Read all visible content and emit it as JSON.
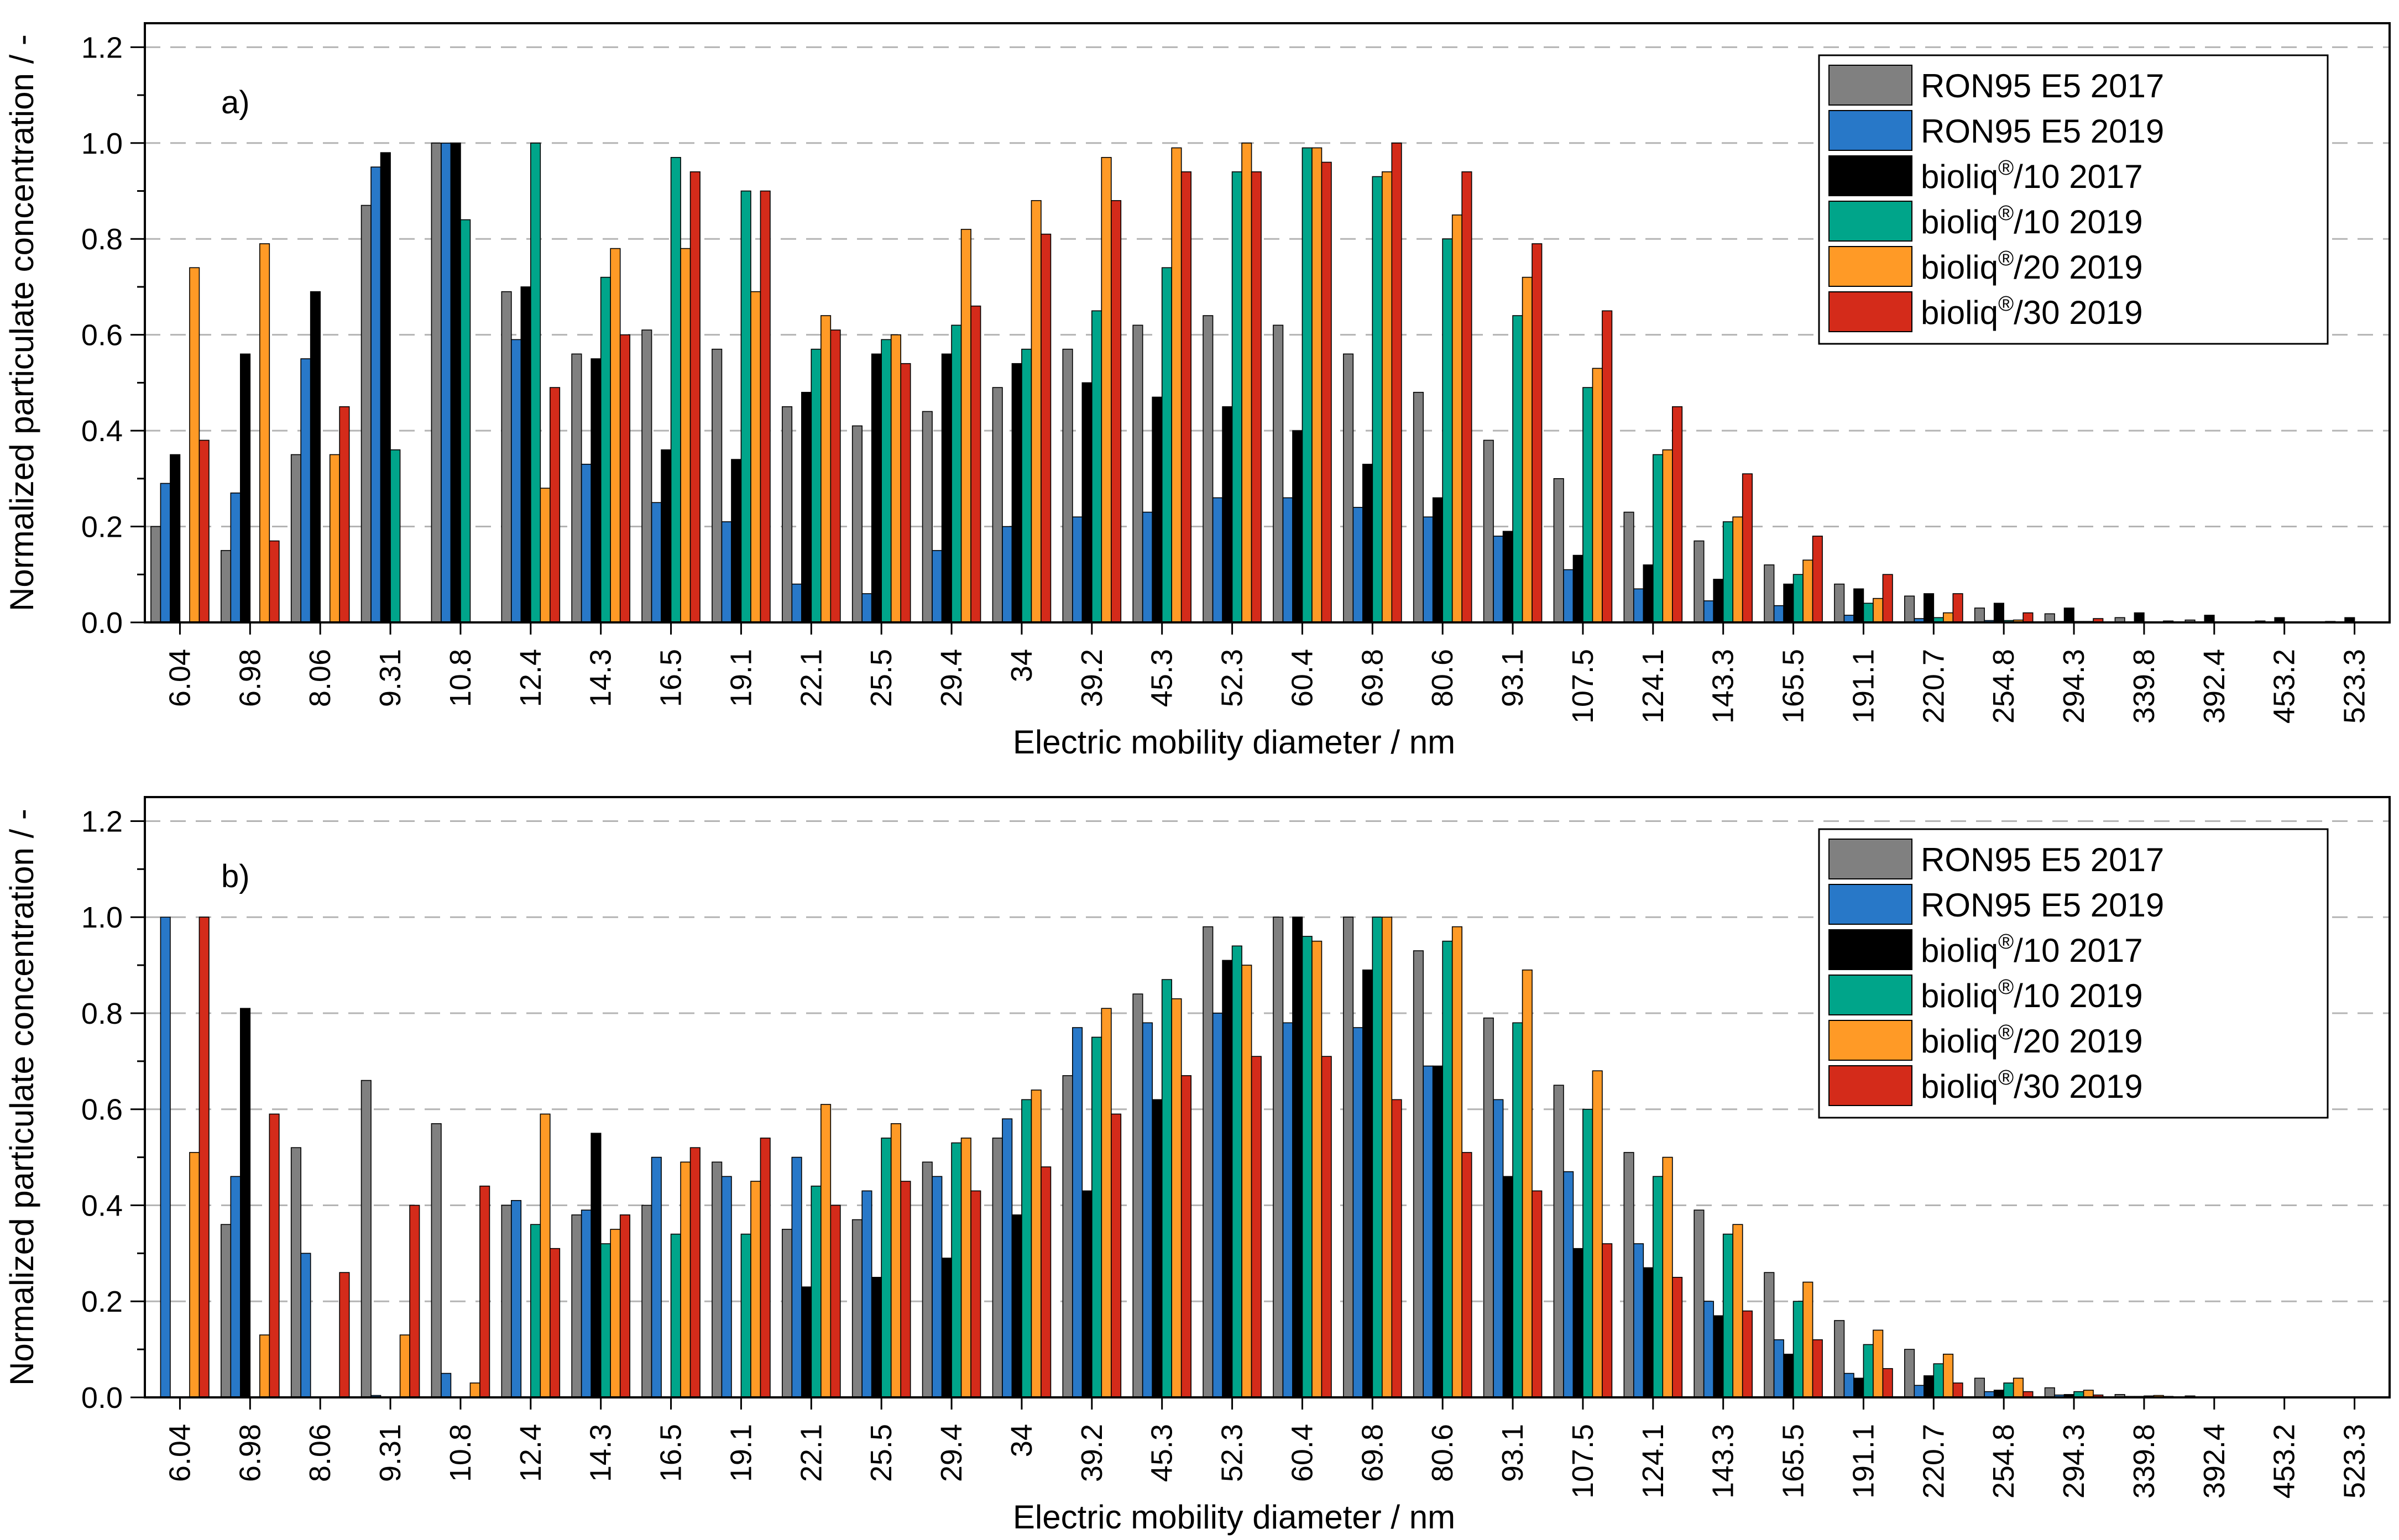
{
  "figure": {
    "y_axis_label": "Normalized particulate concentration / -",
    "x_axis_label": "Electric mobility diameter / nm"
  },
  "chart_data": [
    {
      "type": "bar",
      "panel_label": "a)",
      "xlabel": "Electric mobility diameter / nm",
      "ylabel": "Normalized particulate concentration / -",
      "ylim": [
        0,
        1.25
      ],
      "yticks": [
        "0.0",
        "0.2",
        "0.4",
        "0.6",
        "0.8",
        "1.0",
        "1.2"
      ],
      "grid": "horizontal dashed at major y ticks",
      "legend_position": "top-right",
      "categories": [
        "6.04",
        "6.98",
        "8.06",
        "9.31",
        "10.8",
        "12.4",
        "14.3",
        "16.5",
        "19.1",
        "22.1",
        "25.5",
        "29.4",
        "34",
        "39.2",
        "45.3",
        "52.3",
        "60.4",
        "69.8",
        "80.6",
        "93.1",
        "107.5",
        "124.1",
        "143.3",
        "165.5",
        "191.1",
        "220.7",
        "254.8",
        "294.3",
        "339.8",
        "392.4",
        "453.2",
        "523.3"
      ],
      "series": [
        {
          "name": "RON95 E5 2017",
          "color": "#808080",
          "values": [
            0.2,
            0.15,
            0.35,
            0.87,
            1.0,
            0.69,
            0.56,
            0.61,
            0.57,
            0.45,
            0.41,
            0.44,
            0.49,
            0.57,
            0.62,
            0.64,
            0.62,
            0.56,
            0.48,
            0.38,
            0.3,
            0.23,
            0.17,
            0.12,
            0.08,
            0.055,
            0.03,
            0.018,
            0.01,
            0.005,
            0.003,
            0.002
          ]
        },
        {
          "name": "RON95 E5 2019",
          "color": "#2878c8",
          "values": [
            0.29,
            0.27,
            0.55,
            0.95,
            1.0,
            0.59,
            0.33,
            0.25,
            0.21,
            0.08,
            0.06,
            0.15,
            0.2,
            0.22,
            0.23,
            0.26,
            0.26,
            0.24,
            0.22,
            0.18,
            0.11,
            0.07,
            0.045,
            0.035,
            0.015,
            0.008,
            0.004,
            0.002,
            0.001,
            0.001,
            0.0,
            0.0
          ]
        },
        {
          "name": "bioliq®/10 2017",
          "color": "#000000",
          "values": [
            0.35,
            0.56,
            0.69,
            0.98,
            1.0,
            0.7,
            0.55,
            0.36,
            0.34,
            0.48,
            0.56,
            0.56,
            0.54,
            0.5,
            0.47,
            0.45,
            0.4,
            0.33,
            0.26,
            0.19,
            0.14,
            0.12,
            0.09,
            0.08,
            0.07,
            0.06,
            0.04,
            0.03,
            0.02,
            0.015,
            0.01,
            0.01
          ]
        },
        {
          "name": "bioliq®/10 2019",
          "color": "#00a58a",
          "values": [
            0.0,
            0.0,
            0.0,
            0.36,
            0.84,
            1.0,
            0.72,
            0.97,
            0.9,
            0.57,
            0.59,
            0.62,
            0.57,
            0.65,
            0.74,
            0.94,
            0.99,
            0.93,
            0.8,
            0.64,
            0.49,
            0.35,
            0.21,
            0.1,
            0.04,
            0.01,
            0.004,
            0.002,
            0.001,
            0.0,
            0.0,
            0.0
          ]
        },
        {
          "name": "bioliq®/20 2019",
          "color": "#ff9a26",
          "values": [
            0.74,
            0.79,
            0.35,
            0.0,
            0.0,
            0.28,
            0.78,
            0.78,
            0.69,
            0.64,
            0.6,
            0.82,
            0.88,
            0.97,
            0.99,
            1.0,
            0.99,
            0.94,
            0.85,
            0.72,
            0.53,
            0.36,
            0.22,
            0.13,
            0.05,
            0.02,
            0.005,
            0.002,
            0.001,
            0.0,
            0.0,
            0.0
          ]
        },
        {
          "name": "bioliq®/30 2019",
          "color": "#d42b1a",
          "values": [
            0.38,
            0.17,
            0.45,
            0.0,
            0.0,
            0.49,
            0.6,
            0.94,
            0.9,
            0.61,
            0.54,
            0.66,
            0.81,
            0.88,
            0.94,
            0.94,
            0.96,
            1.0,
            0.94,
            0.79,
            0.65,
            0.45,
            0.31,
            0.18,
            0.1,
            0.06,
            0.02,
            0.008,
            0.003,
            0.001,
            0.0,
            0.0
          ]
        }
      ]
    },
    {
      "type": "bar",
      "panel_label": "b)",
      "xlabel": "Electric mobility diameter / nm",
      "ylabel": "Normalized particulate concentration / -",
      "ylim": [
        0,
        1.25
      ],
      "yticks": [
        "0.0",
        "0.2",
        "0.4",
        "0.6",
        "0.8",
        "1.0",
        "1.2"
      ],
      "grid": "horizontal dashed at major y ticks",
      "legend_position": "top-right",
      "categories": [
        "6.04",
        "6.98",
        "8.06",
        "9.31",
        "10.8",
        "12.4",
        "14.3",
        "16.5",
        "19.1",
        "22.1",
        "25.5",
        "29.4",
        "34",
        "39.2",
        "45.3",
        "52.3",
        "60.4",
        "69.8",
        "80.6",
        "93.1",
        "107.5",
        "124.1",
        "143.3",
        "165.5",
        "191.1",
        "220.7",
        "254.8",
        "294.3",
        "339.8",
        "392.4",
        "453.2",
        "523.3"
      ],
      "series": [
        {
          "name": "RON95 E5 2017",
          "color": "#808080",
          "values": [
            0.0,
            0.36,
            0.52,
            0.66,
            0.57,
            0.4,
            0.38,
            0.4,
            0.49,
            0.35,
            0.37,
            0.49,
            0.54,
            0.67,
            0.84,
            0.98,
            1.0,
            1.0,
            0.93,
            0.79,
            0.65,
            0.51,
            0.39,
            0.26,
            0.16,
            0.1,
            0.04,
            0.02,
            0.006,
            0.003,
            0.001,
            0.001
          ]
        },
        {
          "name": "RON95 E5 2019",
          "color": "#2878c8",
          "values": [
            1.0,
            0.46,
            0.3,
            0.004,
            0.05,
            0.41,
            0.39,
            0.5,
            0.46,
            0.5,
            0.43,
            0.46,
            0.58,
            0.77,
            0.78,
            0.8,
            0.78,
            0.77,
            0.69,
            0.62,
            0.47,
            0.32,
            0.2,
            0.12,
            0.05,
            0.025,
            0.012,
            0.005,
            0.002,
            0.001,
            0.0,
            0.0
          ]
        },
        {
          "name": "bioliq®/10 2017",
          "color": "#000000",
          "values": [
            0.0,
            0.81,
            0.0,
            0.0,
            0.0,
            0.0,
            0.55,
            0.0,
            0.0,
            0.23,
            0.25,
            0.29,
            0.38,
            0.43,
            0.62,
            0.91,
            1.0,
            0.89,
            0.69,
            0.46,
            0.31,
            0.27,
            0.17,
            0.09,
            0.04,
            0.045,
            0.015,
            0.006,
            0.002,
            0.001,
            0.0,
            0.0
          ]
        },
        {
          "name": "bioliq®/10 2019",
          "color": "#00a58a",
          "values": [
            0.0,
            0.0,
            0.0,
            0.0,
            0.0,
            0.36,
            0.32,
            0.34,
            0.34,
            0.44,
            0.54,
            0.53,
            0.62,
            0.75,
            0.87,
            0.94,
            0.96,
            1.0,
            0.95,
            0.78,
            0.6,
            0.46,
            0.34,
            0.2,
            0.11,
            0.07,
            0.03,
            0.012,
            0.003,
            0.001,
            0.0,
            0.0
          ]
        },
        {
          "name": "bioliq®/20 2019",
          "color": "#ff9a26",
          "values": [
            0.51,
            0.13,
            0.0,
            0.13,
            0.03,
            0.59,
            0.35,
            0.49,
            0.45,
            0.61,
            0.57,
            0.54,
            0.64,
            0.81,
            0.83,
            0.9,
            0.95,
            1.0,
            0.98,
            0.89,
            0.68,
            0.5,
            0.36,
            0.24,
            0.14,
            0.09,
            0.04,
            0.015,
            0.004,
            0.001,
            0.0,
            0.0
          ]
        },
        {
          "name": "bioliq®/30 2019",
          "color": "#d42b1a",
          "values": [
            1.0,
            0.59,
            0.26,
            0.4,
            0.44,
            0.31,
            0.38,
            0.52,
            0.54,
            0.4,
            0.45,
            0.43,
            0.48,
            0.59,
            0.67,
            0.71,
            0.71,
            0.62,
            0.51,
            0.43,
            0.32,
            0.25,
            0.18,
            0.12,
            0.06,
            0.03,
            0.012,
            0.005,
            0.002,
            0.0,
            0.0,
            0.0
          ]
        }
      ]
    }
  ]
}
